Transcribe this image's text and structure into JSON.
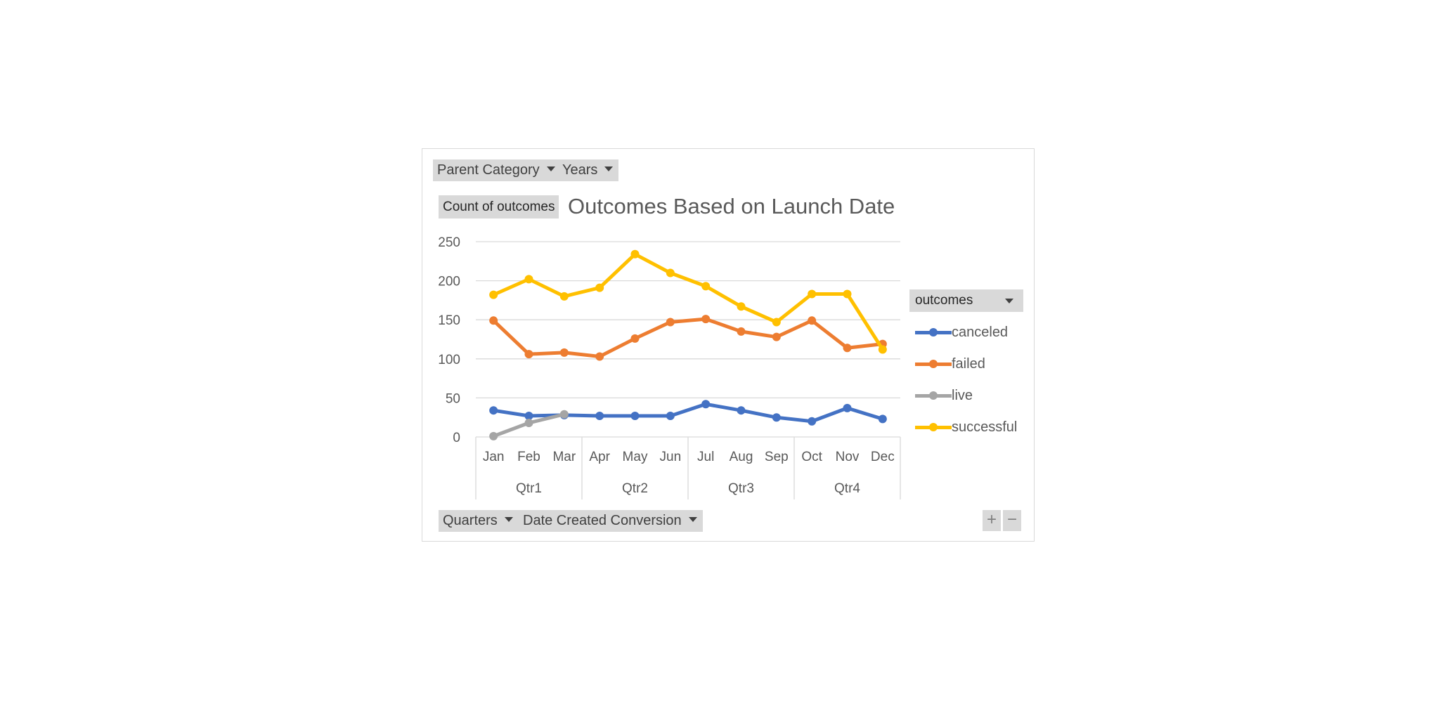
{
  "filters": {
    "parent_category": "Parent Category",
    "years": "Years"
  },
  "value_field": "Count of outcomes",
  "axis_fields": {
    "quarters": "Quarters",
    "date_created": "Date Created Conversion"
  },
  "legend": {
    "header": "outcomes"
  },
  "zoom": {
    "plus": "+",
    "minus": "−"
  },
  "colors": {
    "canceled": "#4472c4",
    "failed": "#ed7d31",
    "live": "#a5a5a5",
    "successful": "#ffc000"
  },
  "chart_data": {
    "type": "line",
    "title": "Outcomes Based on Launch Date",
    "categories": [
      "Jan",
      "Feb",
      "Mar",
      "Apr",
      "May",
      "Jun",
      "Jul",
      "Aug",
      "Sep",
      "Oct",
      "Nov",
      "Dec"
    ],
    "groups": [
      {
        "label": "Qtr1",
        "span": 3
      },
      {
        "label": "Qtr2",
        "span": 3
      },
      {
        "label": "Qtr3",
        "span": 3
      },
      {
        "label": "Qtr4",
        "span": 3
      }
    ],
    "ylim": [
      0,
      250
    ],
    "yticks": [
      0,
      50,
      100,
      150,
      200,
      250
    ],
    "grid": true,
    "legend_position": "right",
    "series": [
      {
        "name": "canceled",
        "values": [
          34,
          27,
          28,
          27,
          27,
          27,
          42,
          34,
          25,
          20,
          37,
          23
        ]
      },
      {
        "name": "failed",
        "values": [
          149,
          106,
          108,
          103,
          126,
          147,
          151,
          135,
          128,
          149,
          114,
          119
        ]
      },
      {
        "name": "live",
        "values": [
          1,
          18,
          29,
          null,
          null,
          null,
          null,
          null,
          null,
          null,
          null,
          null
        ]
      },
      {
        "name": "successful",
        "values": [
          182,
          202,
          180,
          191,
          234,
          210,
          193,
          167,
          147,
          183,
          183,
          112
        ]
      }
    ]
  }
}
